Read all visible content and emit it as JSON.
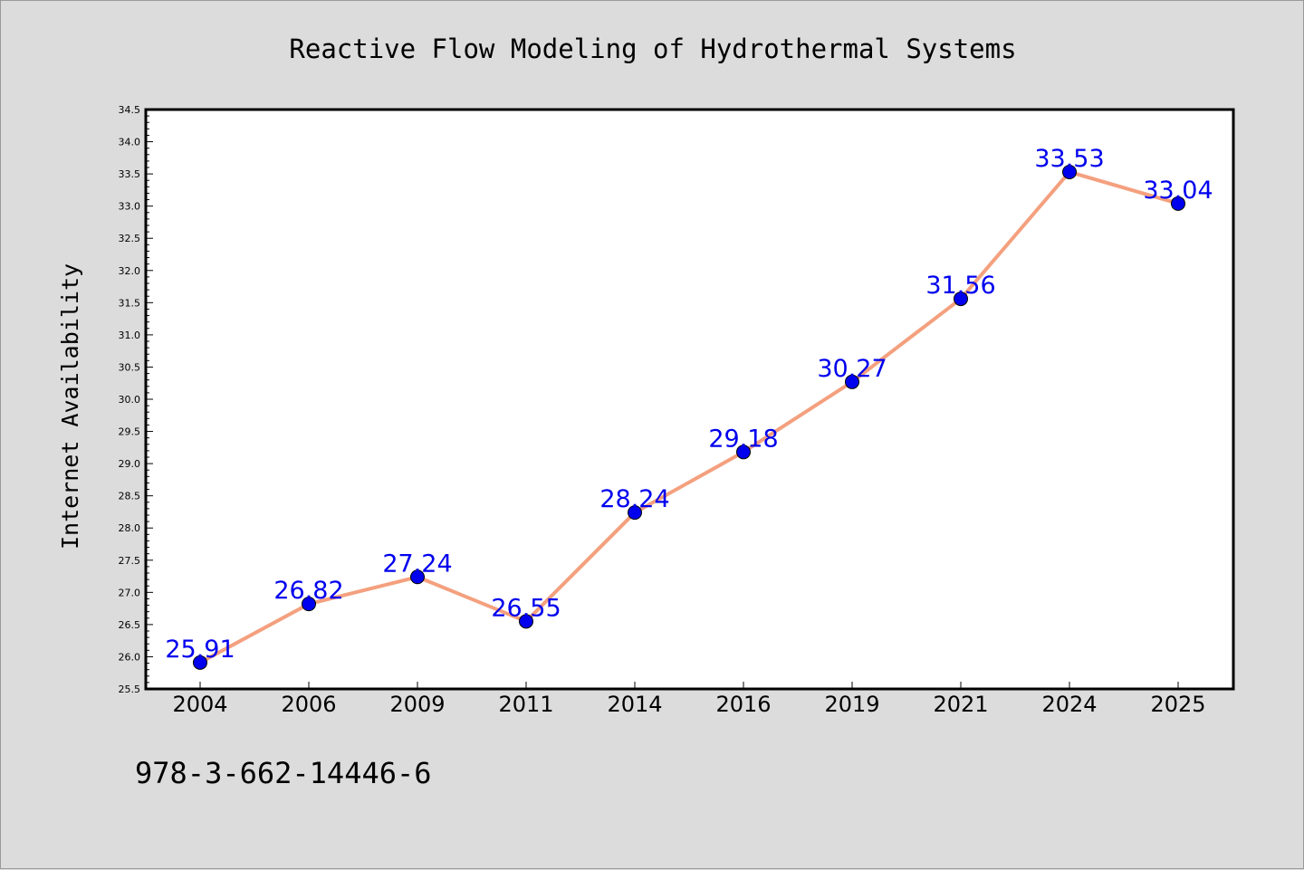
{
  "chart_data": {
    "type": "line",
    "title": "Reactive Flow Modeling of Hydrothermal Systems",
    "xlabel": "",
    "ylabel": "Internet Availability",
    "categories": [
      "2004",
      "2006",
      "2009",
      "2011",
      "2014",
      "2016",
      "2019",
      "2021",
      "2024",
      "2025"
    ],
    "values": [
      25.91,
      26.82,
      27.24,
      26.55,
      28.24,
      29.18,
      30.27,
      31.56,
      33.53,
      33.04
    ],
    "ylim": [
      25.5,
      34.5
    ],
    "ytick_step": 0.5,
    "grid": false,
    "line_color": "#f4a07e",
    "marker_color": "#0000ee",
    "label_color": "#0000ee"
  },
  "footer_code": "978-3-662-14446-6"
}
